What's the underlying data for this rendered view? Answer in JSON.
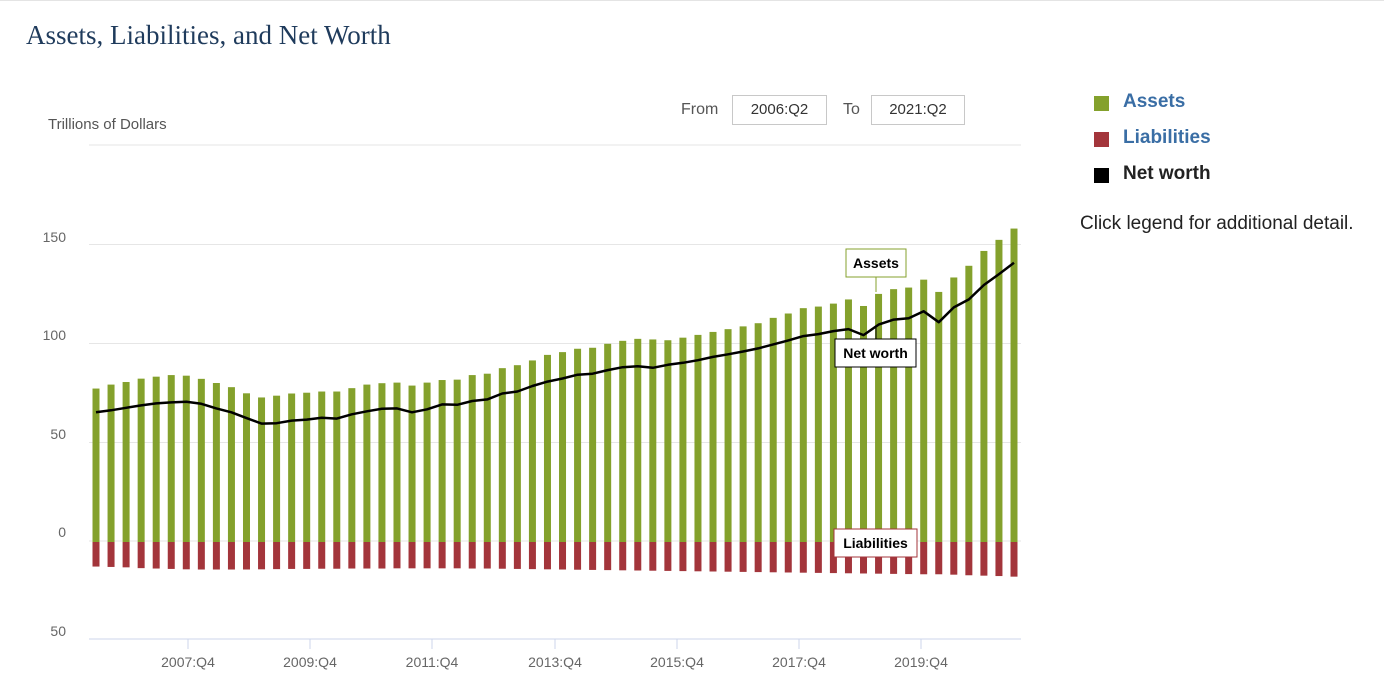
{
  "title": "Assets, Liabilities, and Net Worth",
  "y_unit_label": "Trillions of Dollars",
  "range": {
    "from_label": "From",
    "from_value": "2006:Q2",
    "to_label": "To",
    "to_value": "2021:Q2"
  },
  "legend": {
    "items": [
      {
        "label": "Assets",
        "color": "#84a12c",
        "text_color": "#3a6ea5"
      },
      {
        "label": "Liabilities",
        "color": "#a3353b",
        "text_color": "#3a6ea5"
      },
      {
        "label": "Net worth",
        "color": "#000000",
        "text_color": "#222222"
      }
    ],
    "note": "Click legend for additional detail."
  },
  "chart_data": {
    "type": "bar",
    "x_axis_tick_labels": [
      "2007:Q4",
      "2009:Q4",
      "2011:Q4",
      "2013:Q4",
      "2015:Q4",
      "2017:Q4",
      "2019:Q4"
    ],
    "y_axis_tick_labels": [
      "150",
      "100",
      "50",
      "0",
      "50"
    ],
    "y_ticks": [
      150,
      100,
      50,
      0,
      -50
    ],
    "ylim": [
      -50,
      200
    ],
    "grid": true,
    "annotations": [
      "Assets",
      "Net worth",
      "Liabilities"
    ],
    "series": [
      {
        "name": "Assets",
        "type": "bar",
        "color": "#84a12c",
        "values": [
          77.5,
          79.5,
          80.8,
          82.5,
          83.5,
          84.3,
          84.0,
          82.4,
          80.3,
          78.2,
          75.1,
          73.0,
          73.9,
          75.0,
          75.4,
          76.0,
          76.0,
          77.7,
          79.5,
          80.2,
          80.5,
          79.0,
          80.5,
          81.8,
          82.0,
          84.3,
          85.0,
          87.8,
          89.3,
          91.7,
          94.5,
          95.9,
          97.6,
          98.1,
          100.1,
          101.6,
          102.6,
          102.3,
          101.9,
          103.2,
          104.6,
          106.1,
          107.5,
          108.9,
          110.5,
          113.2,
          115.4,
          118.1,
          118.9,
          120.4,
          122.5,
          119.2,
          125.3,
          127.7,
          128.5,
          132.5,
          126.3,
          133.6,
          139.5,
          147.0,
          152.6,
          158.3
        ]
      },
      {
        "name": "Liabilities",
        "type": "bar",
        "color": "#a3353b",
        "values": [
          -12.4,
          -12.6,
          -12.8,
          -13.2,
          -13.4,
          -13.6,
          -13.8,
          -13.9,
          -13.9,
          -13.9,
          -13.9,
          -13.8,
          -13.7,
          -13.6,
          -13.6,
          -13.5,
          -13.5,
          -13.4,
          -13.4,
          -13.4,
          -13.3,
          -13.3,
          -13.3,
          -13.3,
          -13.3,
          -13.4,
          -13.4,
          -13.5,
          -13.6,
          -13.7,
          -13.8,
          -13.9,
          -14.0,
          -14.1,
          -14.2,
          -14.3,
          -14.4,
          -14.5,
          -14.6,
          -14.7,
          -14.8,
          -14.9,
          -15.0,
          -15.1,
          -15.2,
          -15.3,
          -15.4,
          -15.5,
          -15.6,
          -15.7,
          -15.8,
          -15.9,
          -16.0,
          -16.1,
          -16.2,
          -16.3,
          -16.3,
          -16.5,
          -16.8,
          -17.0,
          -17.2,
          -17.5
        ]
      },
      {
        "name": "Net worth",
        "type": "line",
        "color": "#000000",
        "values": [
          65.5,
          66.5,
          67.8,
          69.0,
          70.0,
          70.5,
          70.8,
          69.8,
          67.5,
          65.5,
          62.6,
          59.8,
          60.0,
          61.3,
          61.8,
          62.8,
          62.3,
          64.5,
          66.0,
          67.3,
          67.5,
          65.5,
          67.0,
          69.5,
          69.3,
          71.2,
          72.0,
          75.0,
          76.0,
          78.8,
          81.0,
          82.6,
          84.5,
          85.0,
          86.8,
          88.3,
          88.8,
          88.0,
          89.5,
          90.5,
          91.8,
          93.5,
          94.8,
          96.2,
          97.8,
          99.8,
          101.8,
          104.0,
          105.0,
          106.5,
          107.5,
          104.5,
          109.8,
          112.3,
          113.0,
          116.5,
          111.0,
          118.5,
          122.5,
          129.8,
          135.3,
          141.0
        ]
      }
    ]
  }
}
